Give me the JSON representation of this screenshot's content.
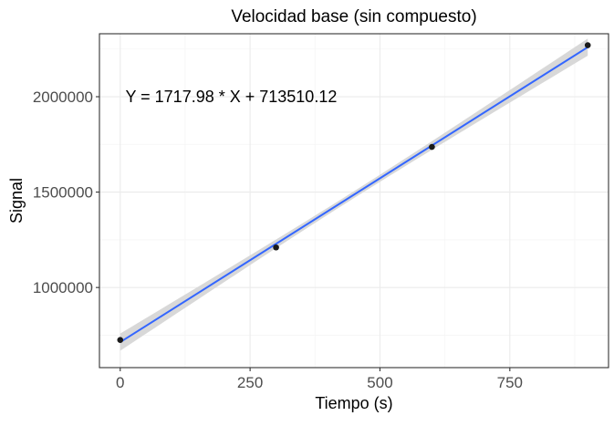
{
  "chart_data": {
    "type": "scatter",
    "title": "Velocidad base (sin compuesto)",
    "xlabel": "Tiempo (s)",
    "ylabel": "Signal",
    "xlim": [
      -40,
      940
    ],
    "ylim": [
      580000,
      2330000
    ],
    "xticks": [
      0,
      250,
      500,
      750
    ],
    "xtick_labels": [
      "0",
      "250",
      "500",
      "750"
    ],
    "xminor": [
      125,
      375,
      625,
      875
    ],
    "yticks": [
      1000000,
      1500000,
      2000000
    ],
    "ytick_labels": [
      "1000000",
      "1500000",
      "2000000"
    ],
    "yminor": [
      750000,
      1250000,
      1750000,
      2250000
    ],
    "grid": true,
    "points": [
      {
        "x": 0,
        "y": 725000
      },
      {
        "x": 300,
        "y": 1210000
      },
      {
        "x": 600,
        "y": 1737000
      },
      {
        "x": 900,
        "y": 2270000
      }
    ],
    "fit": {
      "slope": 1717.98,
      "intercept": 713510.12,
      "x_range": [
        0,
        900
      ]
    },
    "confidence_band": {
      "x": [
        0,
        900
      ],
      "half_width": [
        45000,
        45000
      ],
      "mid_half_width": 18000
    },
    "annotation": "Y = 1717.98 * X + 713510.12",
    "annotation_position": {
      "x": 10,
      "y": 2000000
    },
    "colors": {
      "line": "#3366FF",
      "band": "#d6d6d6",
      "points": "#1a1a1a",
      "panel_border": "#333333",
      "grid_major": "#ebebeb",
      "grid_minor": "#f5f5f5"
    }
  }
}
